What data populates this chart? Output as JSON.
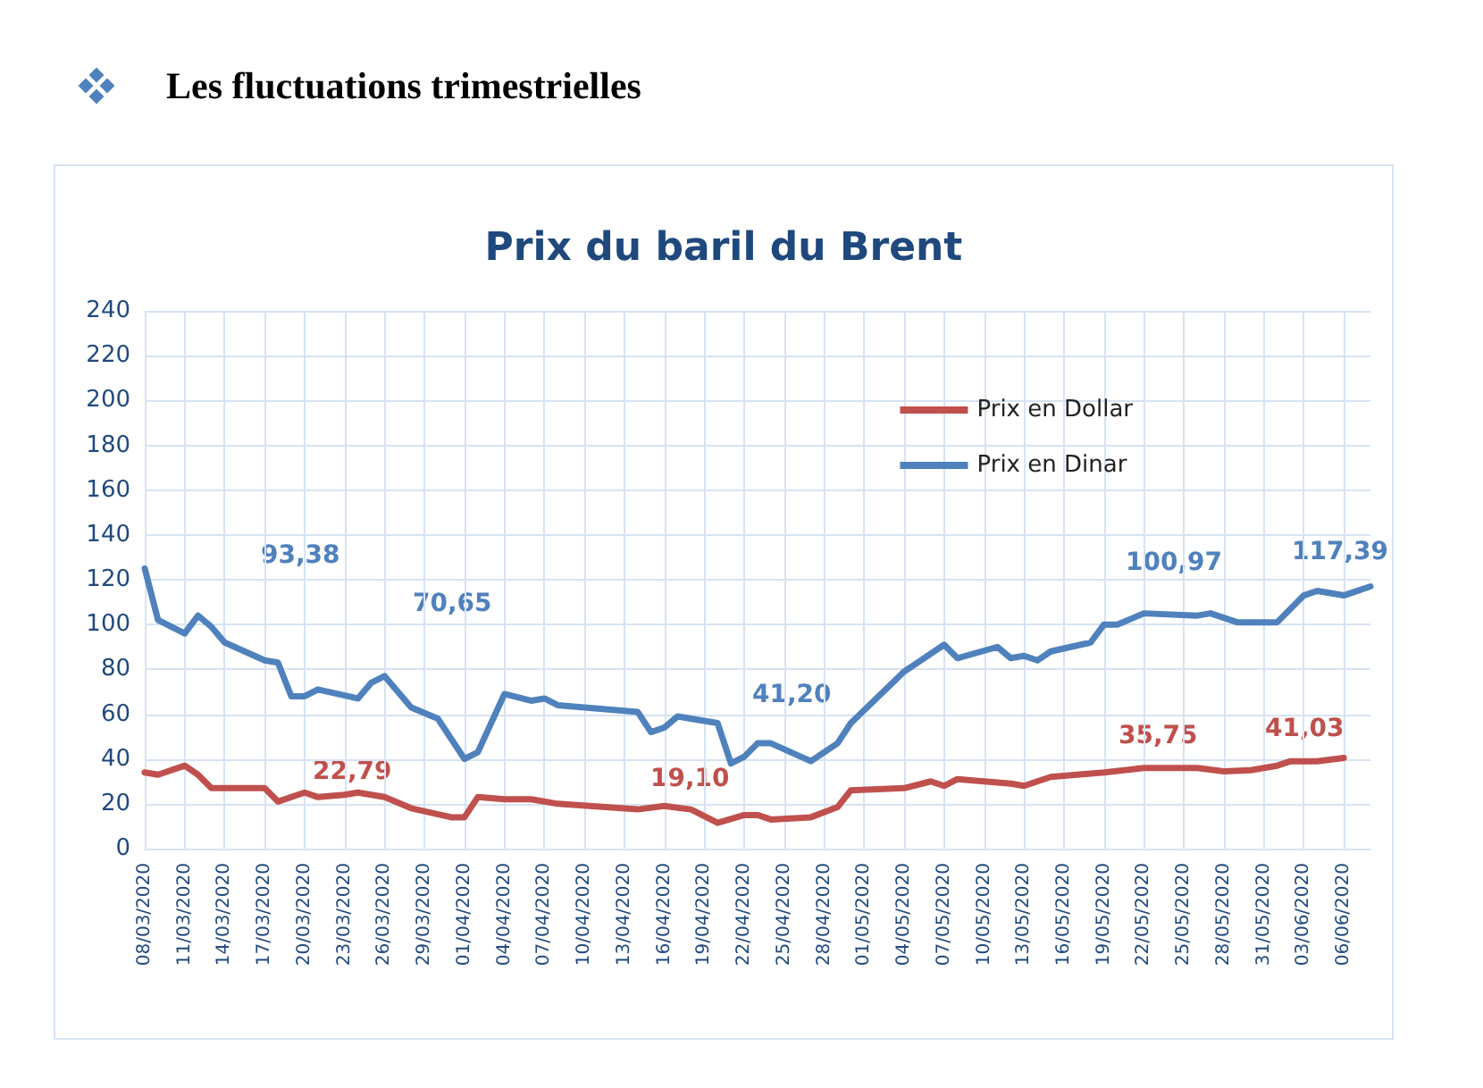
{
  "chart_data": {
    "type": "line",
    "title": "Les fluctuations trimestrielles",
    "subtitle": "Prix du baril du Brent",
    "xlim": [
      "2020-03-08",
      "2020-06-08"
    ],
    "xticks": [
      {
        "value": "2020-03-08",
        "label": "08/03/2020"
      },
      {
        "value": "2020-03-11",
        "label": "11/03/2020"
      },
      {
        "value": "2020-03-14",
        "label": "14/03/2020"
      },
      {
        "value": "2020-03-17",
        "label": "17/03/2020"
      },
      {
        "value": "2020-03-20",
        "label": "20/03/2020"
      },
      {
        "value": "2020-03-23",
        "label": "23/03/2020"
      },
      {
        "value": "2020-03-26",
        "label": "26/03/2020"
      },
      {
        "value": "2020-03-29",
        "label": "29/03/2020"
      },
      {
        "value": "2020-04-01",
        "label": "01/04/2020"
      },
      {
        "value": "2020-04-04",
        "label": "04/04/2020"
      },
      {
        "value": "2020-04-07",
        "label": "07/04/2020"
      },
      {
        "value": "2020-04-10",
        "label": "10/04/2020"
      },
      {
        "value": "2020-04-13",
        "label": "13/04/2020"
      },
      {
        "value": "2020-04-16",
        "label": "16/04/2020"
      },
      {
        "value": "2020-04-19",
        "label": "19/04/2020"
      },
      {
        "value": "2020-04-22",
        "label": "22/04/2020"
      },
      {
        "value": "2020-04-25",
        "label": "25/04/2020"
      },
      {
        "value": "2020-04-28",
        "label": "28/04/2020"
      },
      {
        "value": "2020-05-01",
        "label": "01/05/2020"
      },
      {
        "value": "2020-05-04",
        "label": "04/05/2020"
      },
      {
        "value": "2020-05-07",
        "label": "07/05/2020"
      },
      {
        "value": "2020-05-10",
        "label": "10/05/2020"
      },
      {
        "value": "2020-05-13",
        "label": "13/05/2020"
      },
      {
        "value": "2020-05-16",
        "label": "16/05/2020"
      },
      {
        "value": "2020-05-19",
        "label": "19/05/2020"
      },
      {
        "value": "2020-05-22",
        "label": "22/05/2020"
      },
      {
        "value": "2020-05-25",
        "label": "25/05/2020"
      },
      {
        "value": "2020-05-28",
        "label": "28/05/2020"
      },
      {
        "value": "2020-05-31",
        "label": "31/05/2020"
      },
      {
        "value": "2020-06-03",
        "label": "03/06/2020"
      },
      {
        "value": "2020-06-06",
        "label": "06/06/2020"
      }
    ],
    "ylim": [
      0,
      240
    ],
    "yticks": [
      0,
      20,
      40,
      60,
      80,
      100,
      120,
      140,
      160,
      180,
      200,
      220,
      240
    ],
    "grid": true,
    "legend": "top right",
    "marker": "none",
    "line_style": "solid",
    "annotations": [
      "93,38",
      "70,65",
      "41,20",
      "100,97",
      "117,39",
      "22,79",
      "19,10",
      "35,75",
      "41,03"
    ],
    "series": [
      {
        "name": "Prix en Dollar",
        "color": "#c0504d",
        "x": [
          "2020-03-08",
          "2020-03-09",
          "2020-03-11",
          "2020-03-12",
          "2020-03-13",
          "2020-03-17",
          "2020-03-18",
          "2020-03-20",
          "2020-03-21",
          "2020-03-23",
          "2020-03-24",
          "2020-03-26",
          "2020-03-28",
          "2020-03-31",
          "2020-04-01",
          "2020-04-02",
          "2020-04-04",
          "2020-04-06",
          "2020-04-08",
          "2020-04-14",
          "2020-04-16",
          "2020-04-18",
          "2020-04-20",
          "2020-04-22",
          "2020-04-23",
          "2020-04-24",
          "2020-04-27",
          "2020-04-29",
          "2020-04-30",
          "2020-05-04",
          "2020-05-06",
          "2020-05-07",
          "2020-05-08",
          "2020-05-12",
          "2020-05-13",
          "2020-05-15",
          "2020-05-19",
          "2020-05-22",
          "2020-05-26",
          "2020-05-28",
          "2020-05-30",
          "2020-06-01",
          "2020-06-02",
          "2020-06-04",
          "2020-06-06"
        ],
        "values": [
          34,
          33,
          37,
          33,
          27,
          27,
          21,
          25,
          23,
          24,
          25,
          23,
          18,
          14,
          14,
          23,
          22,
          22,
          20,
          17.5,
          19,
          17.5,
          11.5,
          15,
          15,
          13,
          14,
          18.5,
          26,
          27,
          30,
          28,
          31,
          29,
          28,
          32,
          34,
          36,
          36,
          34.5,
          35,
          37,
          39,
          39,
          40.5
        ]
      },
      {
        "name": "Prix en Dinar",
        "color": "#4f81bd",
        "x": [
          "2020-03-08",
          "2020-03-09",
          "2020-03-11",
          "2020-03-12",
          "2020-03-13",
          "2020-03-14",
          "2020-03-17",
          "2020-03-18",
          "2020-03-19",
          "2020-03-20",
          "2020-03-21",
          "2020-03-24",
          "2020-03-25",
          "2020-03-26",
          "2020-03-28",
          "2020-03-30",
          "2020-04-01",
          "2020-04-02",
          "2020-04-04",
          "2020-04-06",
          "2020-04-07",
          "2020-04-08",
          "2020-04-14",
          "2020-04-15",
          "2020-04-16",
          "2020-04-17",
          "2020-04-20",
          "2020-04-21",
          "2020-04-22",
          "2020-04-23",
          "2020-04-24",
          "2020-04-27",
          "2020-04-29",
          "2020-04-30",
          "2020-05-04",
          "2020-05-05",
          "2020-05-07",
          "2020-05-08",
          "2020-05-11",
          "2020-05-12",
          "2020-05-13",
          "2020-05-14",
          "2020-05-15",
          "2020-05-18",
          "2020-05-19",
          "2020-05-20",
          "2020-05-22",
          "2020-05-26",
          "2020-05-27",
          "2020-05-29",
          "2020-06-01",
          "2020-06-03",
          "2020-06-04",
          "2020-06-06",
          "2020-06-08"
        ],
        "values": [
          125,
          102,
          96,
          104,
          99,
          92,
          84,
          83,
          68,
          68,
          71,
          67,
          74,
          77,
          63,
          58,
          40,
          43,
          69,
          66,
          67,
          64,
          61,
          52,
          54,
          59,
          56,
          38,
          41,
          47,
          47,
          39,
          47,
          56,
          79,
          83,
          91,
          85,
          90,
          85,
          86,
          84,
          88,
          92,
          100,
          100,
          105,
          104,
          105,
          101,
          101,
          113,
          115,
          113,
          117
        ]
      }
    ]
  }
}
